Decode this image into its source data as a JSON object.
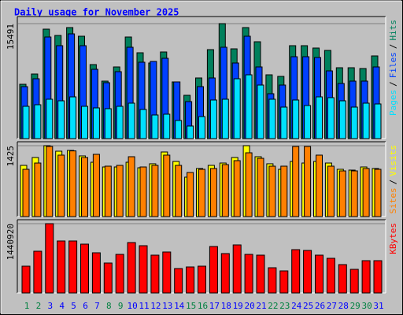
{
  "chart_data": [
    {
      "type": "bar",
      "title": "Daily usage for November 2025",
      "categories": [
        "1",
        "2",
        "3",
        "4",
        "5",
        "6",
        "7",
        "8",
        "9",
        "10",
        "11",
        "12",
        "13",
        "14",
        "15",
        "16",
        "17",
        "18",
        "19",
        "20",
        "21",
        "22",
        "23",
        "24",
        "25",
        "26",
        "27",
        "28",
        "29",
        "30",
        "31"
      ],
      "category_colors": [
        "#008040",
        "#008040",
        "#0000ff",
        "#0000ff",
        "#0000ff",
        "#0000ff",
        "#0000ff",
        "#008040",
        "#008040",
        "#0000ff",
        "#0000ff",
        "#0000ff",
        "#0000ff",
        "#0000ff",
        "#008040",
        "#008040",
        "#0000ff",
        "#0000ff",
        "#0000ff",
        "#0000ff",
        "#0000ff",
        "#008040",
        "#008040",
        "#0000ff",
        "#0000ff",
        "#0000ff",
        "#0000ff",
        "#0000ff",
        "#008040",
        "#008040",
        "#0000ff"
      ],
      "legend_separator": "/",
      "ylim": [
        0,
        16340
      ],
      "yticks": [
        15491
      ],
      "series": [
        {
          "name": "Hits",
          "color": "#00805c",
          "values": [
            7321,
            8700,
            14748,
            13899,
            14960,
            13793,
            9973,
            7745,
            9655,
            13687,
            11565,
            10186,
            11671,
            7639,
            5836,
            8170,
            11989,
            15491,
            12095,
            14960,
            13050,
            8594,
            8382,
            12520,
            12520,
            12202,
            11883,
            9549,
            9549,
            9443,
            11141
          ]
        },
        {
          "name": "Files",
          "color": "#0040ff",
          "values": [
            7003,
            8064,
            13687,
            12520,
            14111,
            12520,
            9337,
            7533,
            9019,
            12308,
            10292,
            10398,
            10822,
            7639,
            4987,
            7003,
            8170,
            12308,
            10186,
            13793,
            9655,
            6048,
            7215,
            11034,
            11034,
            10928,
            9125,
            7427,
            7745,
            7745,
            9655
          ]
        },
        {
          "name": "Pages",
          "color": "#00e0ff",
          "values": [
            4350,
            4562,
            5305,
            5093,
            5623,
            4350,
            4138,
            4032,
            4350,
            4775,
            3926,
            3183,
            3289,
            2440,
            1698,
            2971,
            5199,
            5305,
            8064,
            8594,
            7215,
            5305,
            4244,
            5199,
            4456,
            5623,
            5517,
            5093,
            4244,
            4775,
            4668
          ]
        }
      ]
    },
    {
      "type": "bar",
      "legend_separator": "/",
      "ylim": [
        0,
        1488
      ],
      "yticks": [
        1425
      ],
      "series": [
        {
          "name": "Visits",
          "color": "#ffff00",
          "values": [
            1029,
            1187,
            1425,
            1314,
            1330,
            1219,
            1092,
            997,
            997,
            1092,
            981,
            1061,
            1298,
            1108,
            792,
            966,
            1029,
            1076,
            1187,
            1425,
            1203,
            1061,
            950,
            1108,
            1076,
            1108,
            1076,
            950,
            934,
            997,
            966
          ]
        },
        {
          "name": "Sites",
          "color": "#ff8000",
          "values": [
            950,
            1076,
            1410,
            1235,
            1320,
            1187,
            1251,
            1013,
            1029,
            1203,
            997,
            1029,
            1235,
            1029,
            886,
            950,
            966,
            1045,
            1124,
            1282,
            1171,
            1013,
            1013,
            1409,
            1409,
            1235,
            1013,
            918,
            918,
            966,
            950
          ]
        }
      ]
    },
    {
      "type": "bar",
      "ylim": [
        0,
        1506408
      ],
      "yticks": [
        1440920
      ],
      "series": [
        {
          "name": "KBytes",
          "color": "#ff0000",
          "values": [
            556716,
            867822,
            1440920,
            1080684,
            1080684,
            1015188,
            835074,
            622212,
            802326,
            1047936,
            982440,
            785952,
            851448,
            507594,
            540342,
            556716,
            966066,
            818700,
            998814,
            802326,
            785952,
            523968,
            458472,
            900570,
            884196,
            785952,
            720456,
            589464,
            491220,
            671334,
            671334
          ]
        }
      ]
    }
  ]
}
